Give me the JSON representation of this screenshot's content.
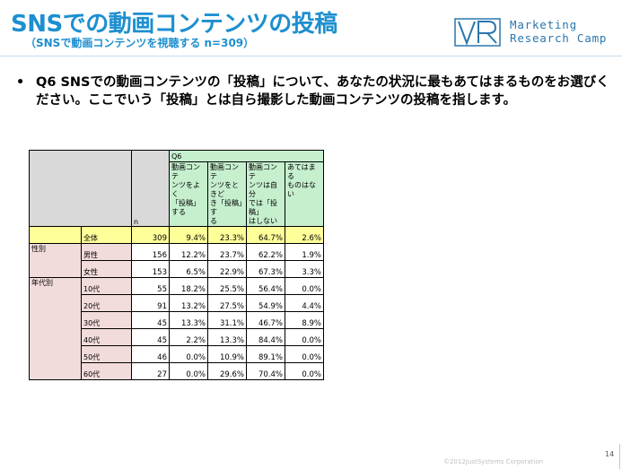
{
  "slide": {
    "title": "SNSでの動画コンテンツの投稿",
    "subtitle": "（SNSで動画コンテンツを視聴する n=309）",
    "logo": {
      "line1": "Marketing",
      "line2": "Research Camp",
      "mark": "VR"
    },
    "question_bullet": "•",
    "question": "Q6 SNSでの動画コンテンツの「投稿」について、あなたの状況に最もあてはまるものをお選びください。ここでいう「投稿」とは自ら撮影した動画コンテンツの投稿を指します。",
    "footer": "©2012JustSystems Corporation",
    "page_number": "14",
    "colors": {
      "title": "#1d8fd0",
      "header_green": "#c6efce",
      "total_yellow": "#ffff99",
      "segment_pink": "#f2dcdb",
      "header_grey": "#d9d9d9"
    }
  },
  "table": {
    "group_label": "Q6",
    "n_label": "n",
    "columns": [
      [
        "動画コンテ",
        "ンツをよく",
        "「投稿」する"
      ],
      [
        "動画コンテ",
        "ンツをときど",
        "き「投稿」す",
        "る"
      ],
      [
        "動画コンテ",
        "ンツは自分",
        "では「投稿」",
        "はしない"
      ],
      [
        "あてはまる",
        "ものはない"
      ]
    ],
    "rows": [
      {
        "segment": "",
        "label": "全体",
        "n": "309",
        "values": [
          "9.4%",
          "23.3%",
          "64.7%",
          "2.6%"
        ]
      },
      {
        "segment": "性別",
        "label": "男性",
        "n": "156",
        "values": [
          "12.2%",
          "23.7%",
          "62.2%",
          "1.9%"
        ]
      },
      {
        "segment": "",
        "label": "女性",
        "n": "153",
        "values": [
          "6.5%",
          "22.9%",
          "67.3%",
          "3.3%"
        ]
      },
      {
        "segment": "年代別",
        "label": "10代",
        "n": "55",
        "values": [
          "18.2%",
          "25.5%",
          "56.4%",
          "0.0%"
        ]
      },
      {
        "segment": "",
        "label": "20代",
        "n": "91",
        "values": [
          "13.2%",
          "27.5%",
          "54.9%",
          "4.4%"
        ]
      },
      {
        "segment": "",
        "label": "30代",
        "n": "45",
        "values": [
          "13.3%",
          "31.1%",
          "46.7%",
          "8.9%"
        ]
      },
      {
        "segment": "",
        "label": "40代",
        "n": "45",
        "values": [
          "2.2%",
          "13.3%",
          "84.4%",
          "0.0%"
        ]
      },
      {
        "segment": "",
        "label": "50代",
        "n": "46",
        "values": [
          "0.0%",
          "10.9%",
          "89.1%",
          "0.0%"
        ]
      },
      {
        "segment": "",
        "label": "60代",
        "n": "27",
        "values": [
          "0.0%",
          "29.6%",
          "70.4%",
          "0.0%"
        ]
      }
    ]
  }
}
